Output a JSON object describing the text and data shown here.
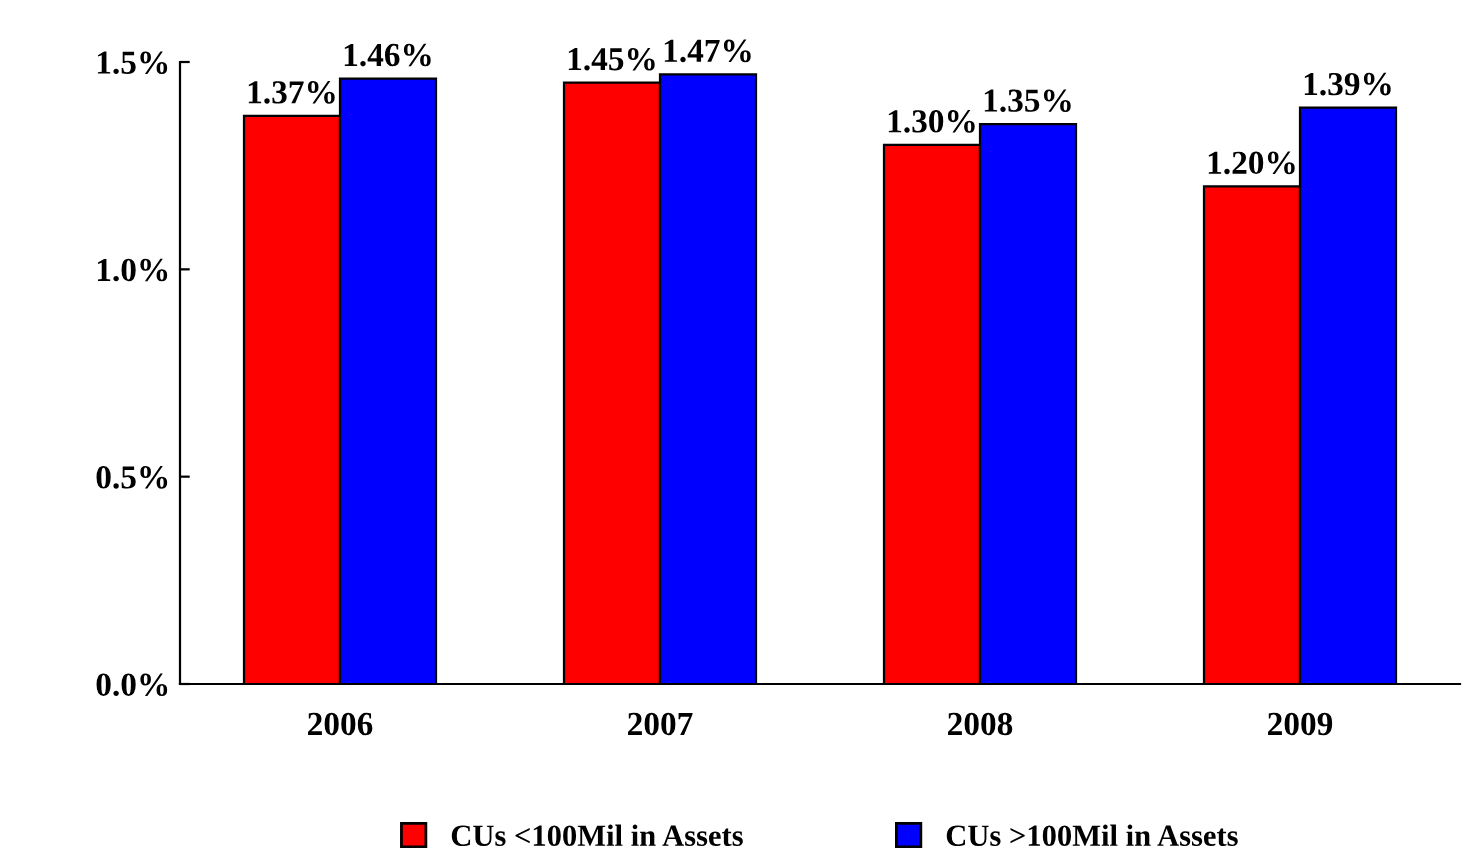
{
  "chart_data": {
    "type": "bar",
    "categories": [
      "2006",
      "2007",
      "2008",
      "2009"
    ],
    "series": [
      {
        "name": "CUs <100Mil in Assets",
        "color": "#ff0000",
        "values": [
          1.37,
          1.45,
          1.3,
          1.2
        ],
        "value_labels": [
          "1.37%",
          "1.45%",
          "1.30%",
          "1.20%"
        ]
      },
      {
        "name": "CUs >100Mil in Assets",
        "color": "#0000ff",
        "values": [
          1.46,
          1.47,
          1.35,
          1.39
        ],
        "value_labels": [
          "1.46%",
          "1.47%",
          "1.35%",
          "1.39%"
        ]
      }
    ],
    "ylim": [
      0,
      1.5
    ],
    "yticks": [
      {
        "value": 0,
        "label": "0.0%"
      },
      {
        "value": 0.5,
        "label": "0.5%"
      },
      {
        "value": 1.0,
        "label": "1.0%"
      },
      {
        "value": 1.5,
        "label": "1.5%"
      }
    ],
    "grid": false,
    "legend": "bottom"
  }
}
